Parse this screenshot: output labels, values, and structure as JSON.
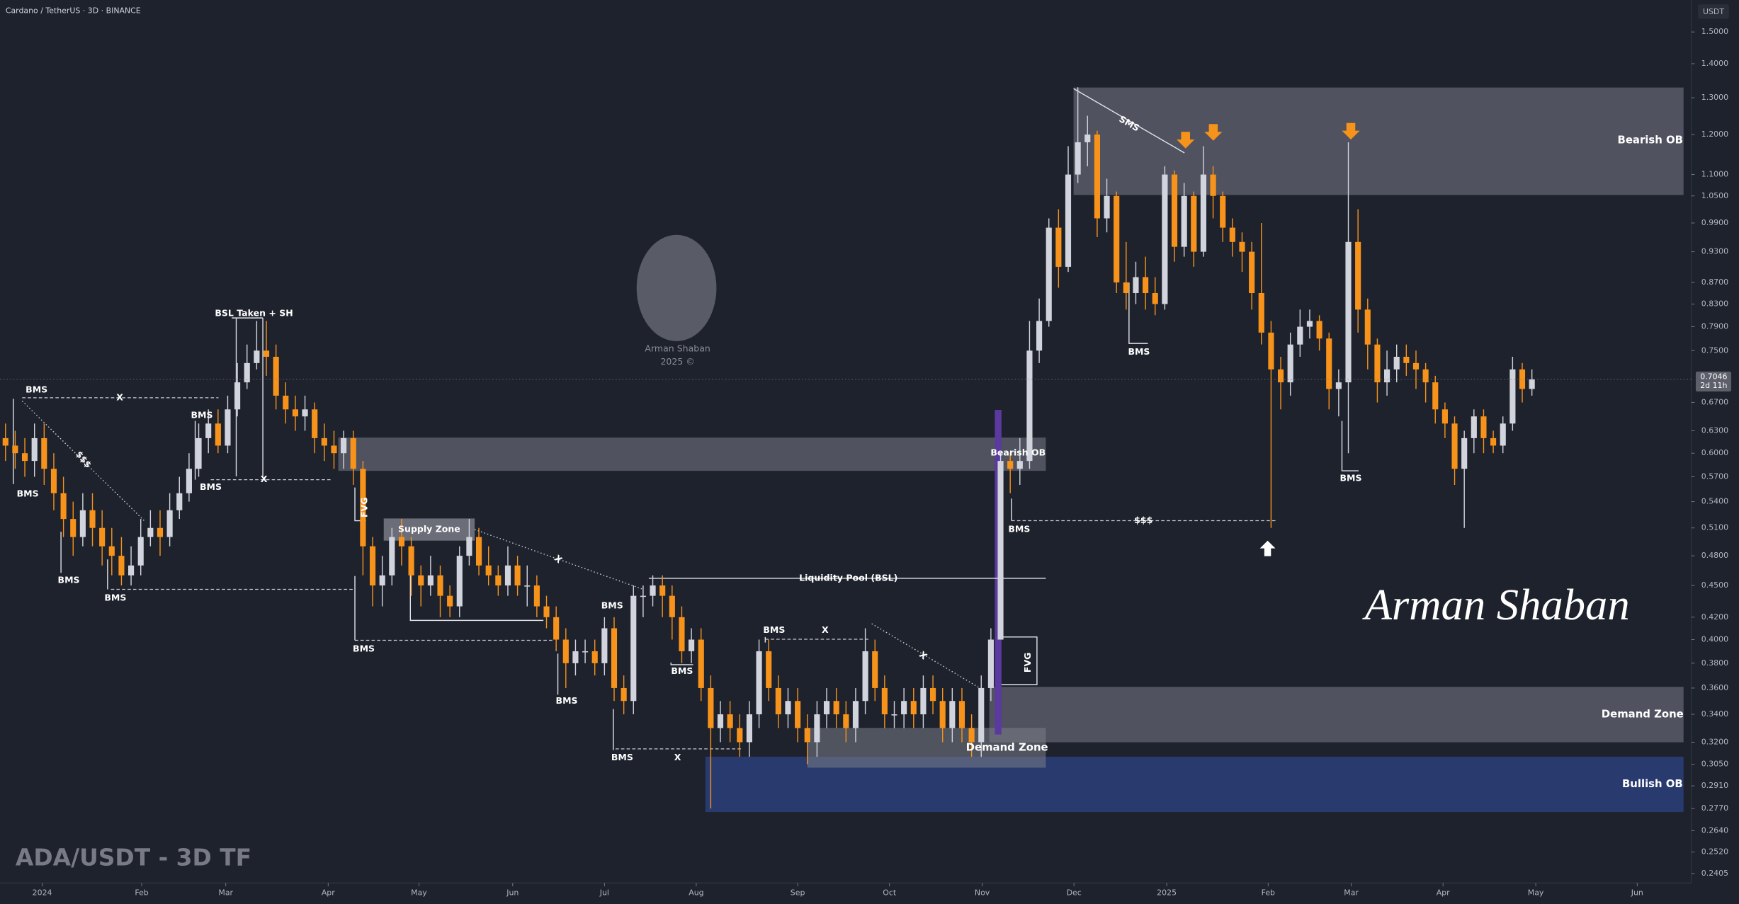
{
  "chart_data": {
    "type": "candlestick",
    "title": "Cardano / TetherUS · 3D · BINANCE",
    "subtitle": "ADA/USDT - 3D TF",
    "y_axis_label": "USDT",
    "log_scale": true,
    "grid": false,
    "xlim": [
      -0.57,
      174.5
    ],
    "ylim": [
      0.2356,
      1.608
    ],
    "xticks": [
      {
        "value": 3.8,
        "label": "2024"
      },
      {
        "value": 14.1,
        "label": "Feb"
      },
      {
        "value": 22.8,
        "label": "Mar"
      },
      {
        "value": 33.4,
        "label": "Apr"
      },
      {
        "value": 42.8,
        "label": "May"
      },
      {
        "value": 52.5,
        "label": "Jun"
      },
      {
        "value": 62.0,
        "label": "Jul"
      },
      {
        "value": 71.5,
        "label": "Aug"
      },
      {
        "value": 82.0,
        "label": "Sep"
      },
      {
        "value": 91.5,
        "label": "Oct"
      },
      {
        "value": 101.1,
        "label": "Nov"
      },
      {
        "value": 110.6,
        "label": "Dec"
      },
      {
        "value": 120.2,
        "label": "2025"
      },
      {
        "value": 130.7,
        "label": "Feb"
      },
      {
        "value": 139.3,
        "label": "Mar"
      },
      {
        "value": 148.8,
        "label": "Apr"
      },
      {
        "value": 158.4,
        "label": "May"
      },
      {
        "value": 168.9,
        "label": "Jun"
      }
    ],
    "yticks": [
      {
        "value": 1.5,
        "label": "1.5000"
      },
      {
        "value": 1.4,
        "label": "1.4000"
      },
      {
        "value": 1.3,
        "label": "1.3000"
      },
      {
        "value": 1.2,
        "label": "1.2000"
      },
      {
        "value": 1.1,
        "label": "1.1000"
      },
      {
        "value": 1.05,
        "label": "1.0500"
      },
      {
        "value": 0.99,
        "label": "0.9900"
      },
      {
        "value": 0.93,
        "label": "0.9300"
      },
      {
        "value": 0.87,
        "label": "0.8700"
      },
      {
        "value": 0.83,
        "label": "0.8300"
      },
      {
        "value": 0.79,
        "label": "0.7900"
      },
      {
        "value": 0.75,
        "label": "0.7500"
      },
      {
        "value": 0.67,
        "label": "0.6700"
      },
      {
        "value": 0.63,
        "label": "0.6300"
      },
      {
        "value": 0.6,
        "label": "0.6000"
      },
      {
        "value": 0.57,
        "label": "0.5700"
      },
      {
        "value": 0.54,
        "label": "0.5400"
      },
      {
        "value": 0.51,
        "label": "0.5100"
      },
      {
        "value": 0.48,
        "label": "0.4800"
      },
      {
        "value": 0.45,
        "label": "0.4500"
      },
      {
        "value": 0.42,
        "label": "0.4200"
      },
      {
        "value": 0.4,
        "label": "0.4000"
      },
      {
        "value": 0.38,
        "label": "0.3800"
      },
      {
        "value": 0.36,
        "label": "0.3600"
      },
      {
        "value": 0.34,
        "label": "0.3400"
      },
      {
        "value": 0.32,
        "label": "0.3200"
      },
      {
        "value": 0.305,
        "label": "0.3050"
      },
      {
        "value": 0.291,
        "label": "0.2910"
      },
      {
        "value": 0.277,
        "label": "0.2770"
      },
      {
        "value": 0.264,
        "label": "0.2640"
      },
      {
        "value": 0.252,
        "label": "0.2520"
      },
      {
        "value": 0.2405,
        "label": "0.2405"
      }
    ],
    "series": [
      {
        "up_color": "#d1d4dc",
        "down_color": "#f7931a",
        "open": [
          0.62,
          0.61,
          0.6,
          0.59,
          0.62,
          0.58,
          0.55,
          0.52,
          0.5,
          0.53,
          0.51,
          0.49,
          0.48,
          0.46,
          0.47,
          0.5,
          0.51,
          0.5,
          0.53,
          0.55,
          0.58,
          0.62,
          0.64,
          0.61,
          0.66,
          0.7,
          0.73,
          0.75,
          0.74,
          0.68,
          0.66,
          0.65,
          0.66,
          0.62,
          0.61,
          0.6,
          0.62,
          0.58,
          0.49,
          0.45,
          0.46,
          0.5,
          0.49,
          0.46,
          0.45,
          0.46,
          0.44,
          0.43,
          0.48,
          0.5,
          0.47,
          0.46,
          0.45,
          0.47,
          0.45,
          0.45,
          0.43,
          0.42,
          0.4,
          0.38,
          0.39,
          0.39,
          0.38,
          0.41,
          0.36,
          0.35,
          0.44,
          0.44,
          0.45,
          0.44,
          0.42,
          0.39,
          0.4,
          0.36,
          0.33,
          0.34,
          0.33,
          0.32,
          0.34,
          0.39,
          0.36,
          0.34,
          0.35,
          0.33,
          0.32,
          0.34,
          0.35,
          0.34,
          0.33,
          0.35,
          0.39,
          0.36,
          0.34,
          0.34,
          0.35,
          0.34,
          0.36,
          0.35,
          0.33,
          0.35,
          0.33,
          0.32,
          0.36,
          0.4,
          0.59,
          0.58,
          0.59,
          0.75,
          0.8,
          0.98,
          0.9,
          1.1,
          1.18,
          1.2,
          1.0,
          1.05,
          0.87,
          0.85,
          0.88,
          0.85,
          0.83,
          1.1,
          0.94,
          1.05,
          0.93,
          1.1,
          1.05,
          0.98,
          0.95,
          0.93,
          0.85,
          0.78,
          0.72,
          0.7,
          0.76,
          0.79,
          0.8,
          0.77,
          0.69,
          0.7,
          0.95,
          0.82,
          0.76,
          0.7,
          0.72,
          0.74,
          0.73,
          0.72,
          0.7,
          0.66,
          0.64,
          0.58,
          0.62,
          0.65,
          0.62,
          0.61,
          0.64,
          0.72,
          0.69
        ],
        "high": [
          0.64,
          0.63,
          0.62,
          0.64,
          0.64,
          0.6,
          0.57,
          0.54,
          0.55,
          0.55,
          0.53,
          0.51,
          0.5,
          0.49,
          0.52,
          0.53,
          0.53,
          0.55,
          0.57,
          0.6,
          0.64,
          0.66,
          0.66,
          0.68,
          0.73,
          0.76,
          0.8,
          0.8,
          0.76,
          0.7,
          0.68,
          0.68,
          0.67,
          0.64,
          0.63,
          0.63,
          0.63,
          0.59,
          0.5,
          0.48,
          0.51,
          0.52,
          0.5,
          0.47,
          0.48,
          0.47,
          0.45,
          0.49,
          0.52,
          0.51,
          0.49,
          0.47,
          0.49,
          0.48,
          0.47,
          0.46,
          0.44,
          0.43,
          0.41,
          0.4,
          0.4,
          0.4,
          0.42,
          0.42,
          0.37,
          0.45,
          0.45,
          0.46,
          0.46,
          0.45,
          0.43,
          0.41,
          0.41,
          0.37,
          0.35,
          0.35,
          0.34,
          0.35,
          0.4,
          0.4,
          0.37,
          0.36,
          0.36,
          0.34,
          0.35,
          0.36,
          0.36,
          0.35,
          0.36,
          0.41,
          0.4,
          0.37,
          0.35,
          0.36,
          0.36,
          0.37,
          0.37,
          0.36,
          0.36,
          0.36,
          0.34,
          0.37,
          0.41,
          0.6,
          0.6,
          0.62,
          0.8,
          0.84,
          1.0,
          1.02,
          1.17,
          1.33,
          1.25,
          1.21,
          1.09,
          1.06,
          0.95,
          0.91,
          0.92,
          0.88,
          1.12,
          1.11,
          1.08,
          1.06,
          1.17,
          1.12,
          1.06,
          1.0,
          0.97,
          0.95,
          0.99,
          0.8,
          0.74,
          0.78,
          0.82,
          0.82,
          0.81,
          0.78,
          0.72,
          1.18,
          1.02,
          0.84,
          0.77,
          0.75,
          0.76,
          0.76,
          0.75,
          0.73,
          0.71,
          0.67,
          0.65,
          0.63,
          0.66,
          0.66,
          0.63,
          0.65,
          0.74,
          0.73,
          0.72
        ],
        "low": [
          0.59,
          0.58,
          0.57,
          0.57,
          0.56,
          0.53,
          0.5,
          0.48,
          0.49,
          0.49,
          0.47,
          0.46,
          0.45,
          0.45,
          0.46,
          0.49,
          0.48,
          0.49,
          0.52,
          0.54,
          0.57,
          0.6,
          0.6,
          0.6,
          0.65,
          0.69,
          0.72,
          0.71,
          0.66,
          0.64,
          0.63,
          0.63,
          0.6,
          0.59,
          0.58,
          0.58,
          0.56,
          0.46,
          0.43,
          0.43,
          0.45,
          0.47,
          0.44,
          0.43,
          0.44,
          0.42,
          0.42,
          0.42,
          0.47,
          0.46,
          0.45,
          0.44,
          0.44,
          0.44,
          0.43,
          0.42,
          0.41,
          0.39,
          0.36,
          0.37,
          0.38,
          0.37,
          0.37,
          0.35,
          0.34,
          0.34,
          0.42,
          0.43,
          0.42,
          0.4,
          0.38,
          0.38,
          0.35,
          0.277,
          0.32,
          0.32,
          0.31,
          0.31,
          0.33,
          0.35,
          0.33,
          0.33,
          0.32,
          0.305,
          0.31,
          0.33,
          0.33,
          0.32,
          0.32,
          0.34,
          0.35,
          0.33,
          0.33,
          0.33,
          0.33,
          0.33,
          0.34,
          0.32,
          0.32,
          0.32,
          0.31,
          0.31,
          0.35,
          0.4,
          0.55,
          0.56,
          0.58,
          0.73,
          0.79,
          0.86,
          0.89,
          1.08,
          1.12,
          0.96,
          0.97,
          0.85,
          0.82,
          0.83,
          0.82,
          0.81,
          0.82,
          0.91,
          0.92,
          0.9,
          0.92,
          1.0,
          0.95,
          0.92,
          0.89,
          0.82,
          0.76,
          0.51,
          0.66,
          0.68,
          0.74,
          0.77,
          0.75,
          0.66,
          0.65,
          0.6,
          0.78,
          0.72,
          0.67,
          0.68,
          0.7,
          0.71,
          0.69,
          0.67,
          0.64,
          0.62,
          0.56,
          0.51,
          0.6,
          0.6,
          0.6,
          0.6,
          0.63,
          0.67,
          0.68
        ],
        "close": [
          0.61,
          0.6,
          0.59,
          0.62,
          0.58,
          0.55,
          0.52,
          0.5,
          0.53,
          0.51,
          0.49,
          0.48,
          0.46,
          0.47,
          0.5,
          0.51,
          0.5,
          0.53,
          0.55,
          0.58,
          0.62,
          0.64,
          0.61,
          0.66,
          0.7,
          0.73,
          0.75,
          0.74,
          0.68,
          0.66,
          0.65,
          0.66,
          0.62,
          0.61,
          0.6,
          0.62,
          0.58,
          0.49,
          0.45,
          0.46,
          0.5,
          0.49,
          0.46,
          0.45,
          0.46,
          0.44,
          0.43,
          0.48,
          0.5,
          0.47,
          0.46,
          0.45,
          0.47,
          0.45,
          0.45,
          0.43,
          0.42,
          0.4,
          0.38,
          0.39,
          0.39,
          0.38,
          0.41,
          0.36,
          0.35,
          0.44,
          0.44,
          0.45,
          0.44,
          0.42,
          0.39,
          0.4,
          0.36,
          0.33,
          0.34,
          0.33,
          0.32,
          0.34,
          0.39,
          0.36,
          0.34,
          0.35,
          0.33,
          0.32,
          0.34,
          0.35,
          0.34,
          0.33,
          0.35,
          0.39,
          0.36,
          0.34,
          0.34,
          0.35,
          0.34,
          0.36,
          0.35,
          0.33,
          0.35,
          0.33,
          0.32,
          0.36,
          0.4,
          0.59,
          0.58,
          0.59,
          0.75,
          0.8,
          0.98,
          0.9,
          1.1,
          1.18,
          1.2,
          1.0,
          1.05,
          0.87,
          0.85,
          0.88,
          0.85,
          0.83,
          1.1,
          0.94,
          1.05,
          0.93,
          1.1,
          1.05,
          0.98,
          0.95,
          0.93,
          0.85,
          0.78,
          0.72,
          0.7,
          0.76,
          0.79,
          0.8,
          0.77,
          0.69,
          0.7,
          0.95,
          0.82,
          0.76,
          0.7,
          0.72,
          0.74,
          0.73,
          0.72,
          0.7,
          0.66,
          0.64,
          0.58,
          0.62,
          0.65,
          0.62,
          0.61,
          0.64,
          0.72,
          0.69,
          0.7046
        ]
      }
    ],
    "last_price": 0.7046,
    "countdown": "2d 11h",
    "annotations": [
      "BSL Taken + SH",
      "BMS",
      "X",
      "BMS",
      "$$$",
      "BMS",
      "X",
      "BMS",
      "BMS",
      "BMS",
      "FVG",
      "Supply Zone",
      "X",
      "BMS",
      "Liquidity Pool (BSL)",
      "BMS",
      "BMS",
      "BMS",
      "BMS",
      "X",
      "BMS",
      "X",
      "X",
      "Demand Zone",
      "Bearish OB",
      "BMS",
      "$$$",
      "FVG",
      "SMS",
      "BMS",
      "BMS",
      "Bearish OB",
      "Demand Zone",
      "Bullish OB"
    ],
    "watermark": [
      "Arman Shaban",
      "2025 ©"
    ],
    "signature": "Arman Shaban"
  }
}
